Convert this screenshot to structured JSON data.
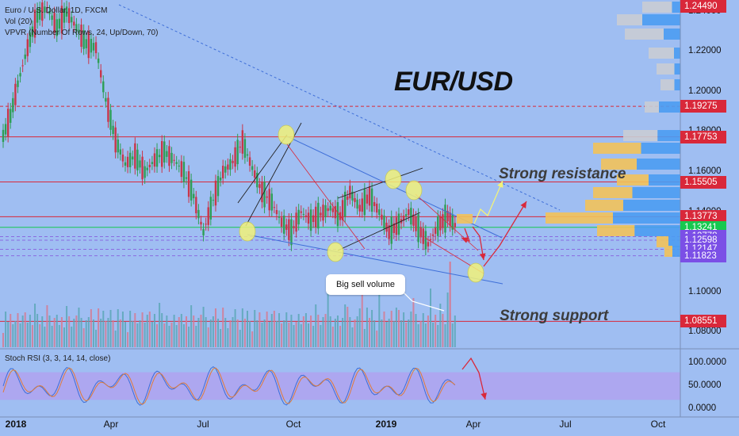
{
  "header": {
    "symbol_line": "Euro / U.S. Dollar, 1D, FXCM",
    "vol_line": "Vol (20)",
    "vpvr_line": "VPVR (Number Of Rows, 24, Up/Down, 70)"
  },
  "overlay": {
    "title": "EUR/USD",
    "callout": "Big sell volume",
    "resistance_label": "Strong resistance",
    "support_label": "Strong support"
  },
  "rsi": {
    "legend": "Stoch RSI (3, 3, 14, 14, close)"
  },
  "colors": {
    "background": "#9fbef2",
    "up_candle": "#2e9e56",
    "down_candle": "#c8364a",
    "price_line_red": "#d9283a",
    "highlight_yellow": "#f2f27a",
    "vpvr_blue": "#4b9cf2",
    "vpvr_orange": "#f2c25a",
    "current_price_green": "#16c94f",
    "rsi_band": "#b39cf0"
  },
  "chart_data": {
    "type": "candlestick",
    "title": "EUR/USD",
    "x_ticks": [
      "2018",
      "Apr",
      "Jul",
      "Oct",
      "2019",
      "Apr",
      "Jul",
      "Oct"
    ],
    "y_ticks": [
      "1.24000",
      "1.22000",
      "1.20000",
      "1.18000",
      "1.16000",
      "1.14000",
      "1.12000",
      "1.10000",
      "1.08000"
    ],
    "y_top_label": "1.24490",
    "ylim": [
      1.075,
      1.245
    ],
    "price_close_path": [
      [
        0,
        1.178
      ],
      [
        3,
        1.188
      ],
      [
        6,
        1.204
      ],
      [
        10,
        1.222
      ],
      [
        14,
        1.238
      ],
      [
        18,
        1.242
      ],
      [
        22,
        1.232
      ],
      [
        26,
        1.24
      ],
      [
        30,
        1.232
      ],
      [
        34,
        1.224
      ],
      [
        38,
        1.222
      ],
      [
        42,
        1.196
      ],
      [
        46,
        1.176
      ],
      [
        50,
        1.164
      ],
      [
        54,
        1.168
      ],
      [
        58,
        1.16
      ],
      [
        62,
        1.166
      ],
      [
        66,
        1.17
      ],
      [
        70,
        1.166
      ],
      [
        74,
        1.16
      ],
      [
        78,
        1.148
      ],
      [
        82,
        1.13
      ],
      [
        86,
        1.146
      ],
      [
        90,
        1.16
      ],
      [
        94,
        1.165
      ],
      [
        98,
        1.175
      ],
      [
        102,
        1.162
      ],
      [
        106,
        1.15
      ],
      [
        110,
        1.145
      ],
      [
        114,
        1.135
      ],
      [
        118,
        1.13
      ],
      [
        122,
        1.14
      ],
      [
        126,
        1.136
      ],
      [
        130,
        1.139
      ],
      [
        134,
        1.142
      ],
      [
        138,
        1.138
      ],
      [
        142,
        1.15
      ],
      [
        146,
        1.142
      ],
      [
        150,
        1.148
      ],
      [
        154,
        1.14
      ],
      [
        158,
        1.13
      ],
      [
        162,
        1.134
      ],
      [
        166,
        1.14
      ],
      [
        170,
        1.132
      ],
      [
        174,
        1.124
      ],
      [
        178,
        1.133
      ],
      [
        182,
        1.138
      ],
      [
        186,
        1.132
      ]
    ],
    "horizontal_levels": [
      {
        "price": "1.19275",
        "color": "#d9283a",
        "style": "dashed"
      },
      {
        "price": "1.17753",
        "color": "#d9283a",
        "style": "solid"
      },
      {
        "price": "1.15505",
        "color": "#d9283a",
        "style": "solid"
      },
      {
        "price": "1.13773",
        "color": "#d9283a",
        "style": "solid"
      },
      {
        "price": "1.13241",
        "color": "#16c94f",
        "style": "solid"
      },
      {
        "price": "1.12778",
        "color": "#8a6be0",
        "style": "dashed"
      },
      {
        "price": "1.12598",
        "color": "#8a6be0",
        "style": "dashed"
      },
      {
        "price": "1.12147",
        "color": "#8a6be0",
        "style": "dashed"
      },
      {
        "price": "1.11823",
        "color": "#8a6be0",
        "style": "dashed"
      },
      {
        "price": "1.08551",
        "color": "#d9283a",
        "style": "solid"
      }
    ],
    "price_tags": [
      {
        "label": "1.24490",
        "color": "#d9283a"
      },
      {
        "label": "1.19275",
        "color": "#d9283a"
      },
      {
        "label": "1.17753",
        "color": "#d9283a"
      },
      {
        "label": "1.15505",
        "color": "#d9283a"
      },
      {
        "label": "1.13773",
        "color": "#d9283a"
      },
      {
        "label": "1.13241",
        "color": "#16c94f"
      },
      {
        "label": "1.12778",
        "color": "#7b4fe6"
      },
      {
        "label": "1.12598",
        "color": "#7b4fe6"
      },
      {
        "label": "1.12147",
        "color": "#7b4fe6"
      },
      {
        "label": "1.11823",
        "color": "#7b4fe6"
      },
      {
        "label": "1.08551",
        "color": "#d9283a"
      }
    ],
    "rsi_ticks": [
      "100.0000",
      "50.0000",
      "0.0000"
    ],
    "rsi_band": [
      20,
      80
    ]
  }
}
